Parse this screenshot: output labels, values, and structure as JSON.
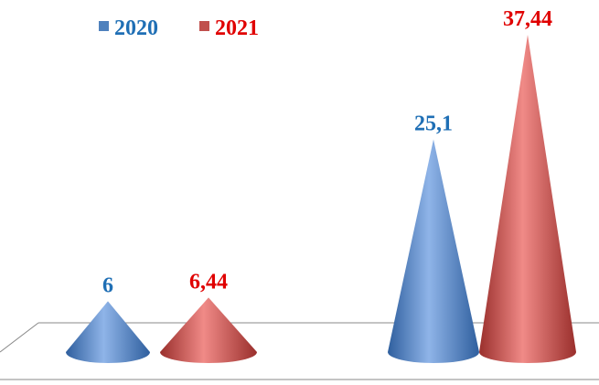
{
  "chart_data": {
    "type": "cone",
    "categories": [
      null,
      null
    ],
    "series": [
      {
        "name": "2020",
        "color": "#4f81bd",
        "label_color": "#1f6fb5",
        "values": [
          6,
          25.1
        ],
        "value_labels": [
          "6",
          "25,1"
        ]
      },
      {
        "name": "2021",
        "color": "#c0504d",
        "label_color": "#e00000",
        "values": [
          6.44,
          37.44
        ],
        "value_labels": [
          "6,44",
          "37,44"
        ]
      }
    ]
  }
}
